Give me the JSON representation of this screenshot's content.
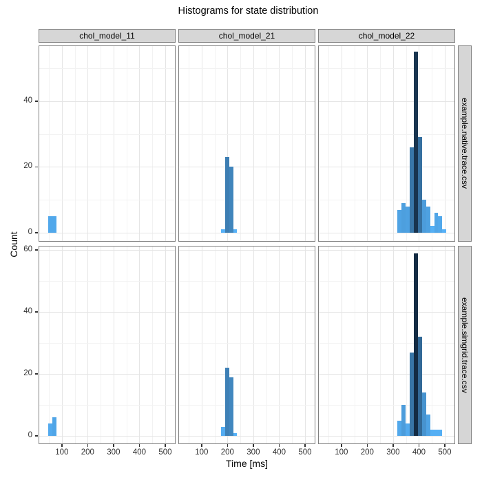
{
  "title": "Histograms for state distribution",
  "axes": {
    "x_title": "Time [ms]",
    "y_title": "Count",
    "x_ticks": [
      100,
      200,
      300,
      400,
      500
    ],
    "x_minor_ticks": [
      50,
      150,
      250,
      350,
      450
    ],
    "x_range_ms": [
      10,
      540
    ],
    "y_ticks_by_row": [
      [
        0,
        20,
        40
      ],
      [
        0,
        20,
        40,
        60
      ]
    ],
    "y_minor_ticks": [
      10,
      30,
      50
    ]
  },
  "facets": {
    "col_labels": [
      "chol_model_11",
      "chol_model_21",
      "chol_model_22"
    ],
    "row_labels": [
      "example.native.trace.csv",
      "example.simgrid.trace.csv"
    ]
  },
  "colors": {
    "fill_low_count": "#56B1F7",
    "fill_high_count": "#132B43",
    "strip_background": "#d6d6d6",
    "panel_border": "#7f7f7f",
    "grid_major": "#e5e5e5",
    "grid_minor": "#f2f2f2",
    "tick_text": "#303030",
    "title_text": "#000000"
  },
  "chart_data": {
    "type": "bar",
    "subtype": "faceted-histogram",
    "title": "Histograms for state distribution",
    "xlabel": "Time [ms]",
    "ylabel": "Count",
    "binwidth_ms": 15.8,
    "xlim": [
      10,
      540
    ],
    "grid": true,
    "fill_gradient": {
      "low": "#56B1F7",
      "high": "#132B43",
      "count_domain": [
        1,
        59
      ]
    },
    "panels": [
      {
        "row": 0,
        "col": 0,
        "row_label": "example.native.trace.csv",
        "col_label": "chol_model_11",
        "bins_x": [
          48.0,
          63.8
        ],
        "counts": [
          5,
          5
        ]
      },
      {
        "row": 0,
        "col": 1,
        "row_label": "example.native.trace.csv",
        "col_label": "chol_model_21",
        "bins_x": [
          174.4,
          190.2,
          206.0,
          221.8
        ],
        "counts": [
          1,
          23,
          20,
          1
        ]
      },
      {
        "row": 0,
        "col": 2,
        "row_label": "example.native.trace.csv",
        "col_label": "chol_model_22",
        "bins_x": [
          316.6,
          332.4,
          348.2,
          364.0,
          379.8,
          395.6,
          411.4,
          427.2,
          443.0,
          458.8,
          474.6,
          490.4
        ],
        "counts": [
          7,
          9,
          8,
          26,
          55,
          29,
          10,
          8,
          2,
          6,
          5,
          1
        ]
      },
      {
        "row": 1,
        "col": 0,
        "row_label": "example.simgrid.trace.csv",
        "col_label": "chol_model_11",
        "bins_x": [
          48.0,
          63.8
        ],
        "counts": [
          4,
          6
        ]
      },
      {
        "row": 1,
        "col": 1,
        "row_label": "example.simgrid.trace.csv",
        "col_label": "chol_model_21",
        "bins_x": [
          174.4,
          190.2,
          206.0,
          221.8
        ],
        "counts": [
          3,
          22,
          19,
          1
        ]
      },
      {
        "row": 1,
        "col": 2,
        "row_label": "example.simgrid.trace.csv",
        "col_label": "chol_model_22",
        "bins_x": [
          316.6,
          332.4,
          348.2,
          364.0,
          379.8,
          395.6,
          411.4,
          427.2,
          443.0,
          458.8,
          474.6
        ],
        "counts": [
          5,
          10,
          4,
          27,
          59,
          32,
          14,
          7,
          2,
          2,
          2
        ]
      }
    ]
  }
}
